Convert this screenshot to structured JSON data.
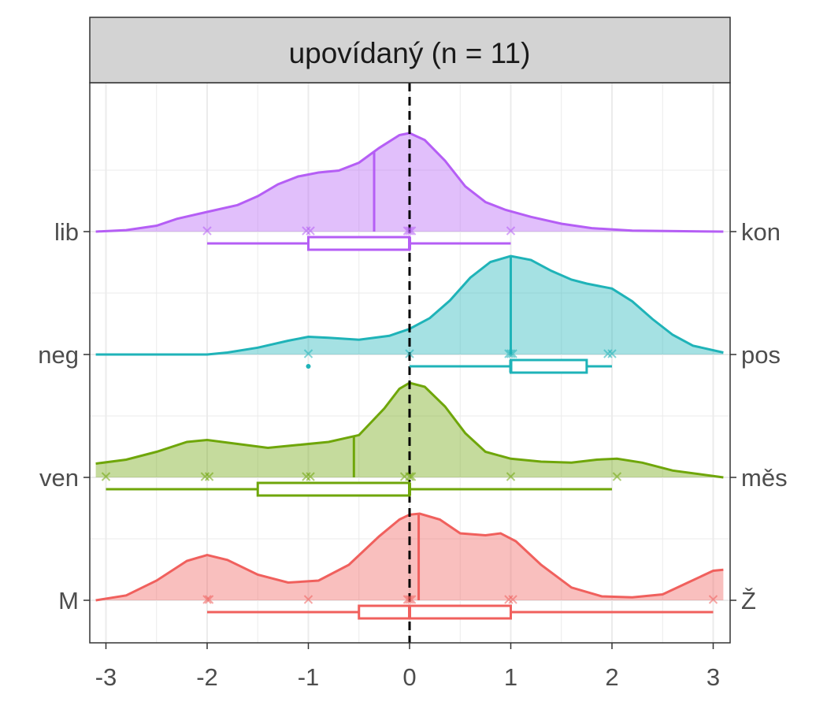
{
  "chart_data": {
    "type": "ridgeline-density",
    "title": "upovídaný (n = 11)",
    "xlabel": "",
    "ylabel": "",
    "xlim": [
      -3.1,
      3.1
    ],
    "x_ticks": [
      "-3",
      "-2",
      "-1",
      "0",
      "1",
      "2",
      "3"
    ],
    "x_tick_values": [
      -3,
      -2,
      -1,
      0,
      1,
      2,
      3
    ],
    "reference_line_x": 0,
    "grid": true,
    "rows": [
      {
        "left_label": "lib",
        "right_label": "kon",
        "color": "#B55EF5",
        "median_line": -0.35,
        "points": [
          -2,
          -1.02,
          -0.98,
          -0.02,
          0,
          0.02,
          1
        ],
        "box": {
          "whisker_low": -2,
          "q1": -1,
          "median": 0,
          "q3": 0,
          "whisker_high": 1
        },
        "density": [
          [
            -3.1,
            0.0
          ],
          [
            -2.8,
            0.015
          ],
          [
            -2.5,
            0.06
          ],
          [
            -2.3,
            0.13
          ],
          [
            -2.0,
            0.2
          ],
          [
            -1.7,
            0.27
          ],
          [
            -1.5,
            0.36
          ],
          [
            -1.3,
            0.48
          ],
          [
            -1.1,
            0.56
          ],
          [
            -0.9,
            0.6
          ],
          [
            -0.7,
            0.62
          ],
          [
            -0.5,
            0.7
          ],
          [
            -0.3,
            0.85
          ],
          [
            -0.1,
            0.98
          ],
          [
            0.0,
            1.0
          ],
          [
            0.15,
            0.93
          ],
          [
            0.35,
            0.72
          ],
          [
            0.55,
            0.46
          ],
          [
            0.75,
            0.3
          ],
          [
            0.95,
            0.22
          ],
          [
            1.2,
            0.15
          ],
          [
            1.5,
            0.08
          ],
          [
            1.8,
            0.035
          ],
          [
            2.2,
            0.01
          ],
          [
            3.1,
            0.0
          ]
        ]
      },
      {
        "left_label": "neg",
        "right_label": "pos",
        "color": "#1FB3B8",
        "median_line": 1,
        "points": [
          -1,
          0,
          1,
          1.02,
          0.98,
          2,
          1.96
        ],
        "outliers": [
          -1
        ],
        "box": {
          "whisker_low": 0,
          "q1": 1,
          "median": 1,
          "q3": 1.75,
          "whisker_high": 2
        },
        "density": [
          [
            -3.1,
            0.0
          ],
          [
            -2.0,
            0.0
          ],
          [
            -1.8,
            0.02
          ],
          [
            -1.5,
            0.07
          ],
          [
            -1.2,
            0.14
          ],
          [
            -1.0,
            0.18
          ],
          [
            -0.8,
            0.17
          ],
          [
            -0.5,
            0.15
          ],
          [
            -0.2,
            0.19
          ],
          [
            0.0,
            0.26
          ],
          [
            0.2,
            0.37
          ],
          [
            0.4,
            0.55
          ],
          [
            0.6,
            0.78
          ],
          [
            0.8,
            0.94
          ],
          [
            1.0,
            1.0
          ],
          [
            1.2,
            0.96
          ],
          [
            1.4,
            0.85
          ],
          [
            1.6,
            0.76
          ],
          [
            1.75,
            0.72
          ],
          [
            2.0,
            0.67
          ],
          [
            2.2,
            0.54
          ],
          [
            2.4,
            0.36
          ],
          [
            2.6,
            0.2
          ],
          [
            2.8,
            0.09
          ],
          [
            3.1,
            0.02
          ]
        ]
      },
      {
        "left_label": "ven",
        "right_label": "měs",
        "color": "#6FA60A",
        "median_line": -0.55,
        "points": [
          -3,
          -2.02,
          -1.98,
          -1.02,
          -0.98,
          -0.05,
          0,
          0.02,
          1,
          2.05
        ],
        "box": {
          "whisker_low": -3,
          "q1": -1.5,
          "median": 0,
          "q3": 0,
          "whisker_high": 2
        },
        "density": [
          [
            -3.1,
            0.14
          ],
          [
            -2.8,
            0.18
          ],
          [
            -2.5,
            0.26
          ],
          [
            -2.2,
            0.36
          ],
          [
            -2.0,
            0.38
          ],
          [
            -1.7,
            0.34
          ],
          [
            -1.4,
            0.3
          ],
          [
            -1.1,
            0.33
          ],
          [
            -0.8,
            0.36
          ],
          [
            -0.5,
            0.43
          ],
          [
            -0.25,
            0.7
          ],
          [
            -0.1,
            0.9
          ],
          [
            0.0,
            0.96
          ],
          [
            0.15,
            0.92
          ],
          [
            0.35,
            0.72
          ],
          [
            0.55,
            0.45
          ],
          [
            0.75,
            0.26
          ],
          [
            1.0,
            0.19
          ],
          [
            1.3,
            0.16
          ],
          [
            1.6,
            0.15
          ],
          [
            1.85,
            0.18
          ],
          [
            2.05,
            0.19
          ],
          [
            2.3,
            0.15
          ],
          [
            2.6,
            0.07
          ],
          [
            3.1,
            0.0
          ]
        ]
      },
      {
        "left_label": "M",
        "right_label": "Ž",
        "color": "#F0605D",
        "median_line": 0.09,
        "points": [
          -2,
          -1.98,
          -1,
          -0.02,
          0,
          0.02,
          0.98,
          1.02,
          3
        ],
        "box": {
          "whisker_low": -2,
          "q1": -0.5,
          "median": 0,
          "q3": 1,
          "whisker_high": 3
        },
        "density": [
          [
            -3.1,
            0.0
          ],
          [
            -2.8,
            0.05
          ],
          [
            -2.5,
            0.2
          ],
          [
            -2.2,
            0.4
          ],
          [
            -2.0,
            0.46
          ],
          [
            -1.8,
            0.41
          ],
          [
            -1.5,
            0.26
          ],
          [
            -1.2,
            0.18
          ],
          [
            -0.9,
            0.2
          ],
          [
            -0.6,
            0.36
          ],
          [
            -0.3,
            0.65
          ],
          [
            -0.1,
            0.82
          ],
          [
            0.0,
            0.87
          ],
          [
            0.1,
            0.88
          ],
          [
            0.3,
            0.82
          ],
          [
            0.5,
            0.68
          ],
          [
            0.75,
            0.66
          ],
          [
            0.9,
            0.68
          ],
          [
            1.05,
            0.6
          ],
          [
            1.3,
            0.36
          ],
          [
            1.6,
            0.13
          ],
          [
            1.9,
            0.04
          ],
          [
            2.2,
            0.03
          ],
          [
            2.5,
            0.06
          ],
          [
            2.75,
            0.18
          ],
          [
            3.0,
            0.3
          ],
          [
            3.1,
            0.31
          ]
        ]
      }
    ]
  }
}
